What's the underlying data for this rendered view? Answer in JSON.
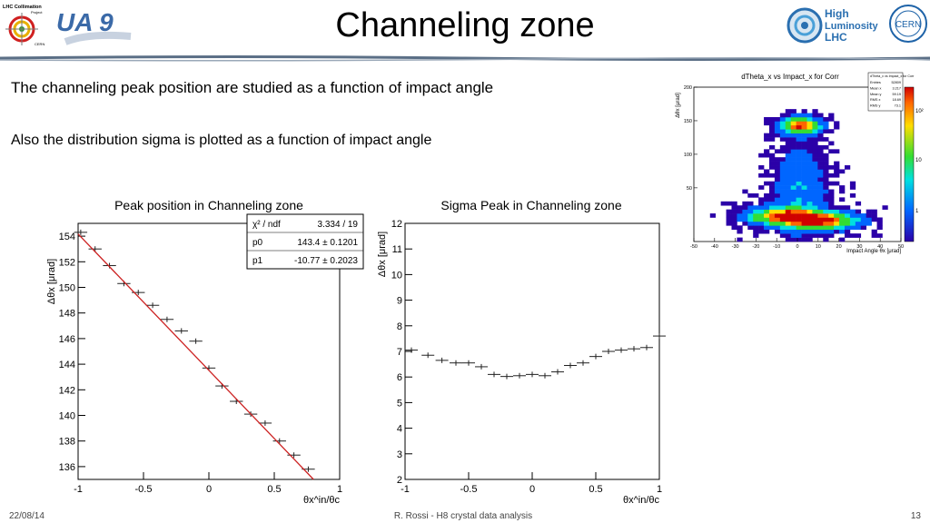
{
  "header": {
    "title": "Channeling zone",
    "logo_left_text": "LHC Collimation",
    "logo_left_sub": "Project",
    "logo_left_sub2": "CERN",
    "logo_ua9_text": "UA 9",
    "logo_hl_line1": "High",
    "logo_hl_line2": "Luminosity",
    "logo_hl_line3": "LHC",
    "logo_cern_text": "CERN"
  },
  "body": {
    "paragraph1": "The channeling peak position are studied as a function of impact angle",
    "paragraph2": "Also the distribution sigma is plotted as a function of impact angle"
  },
  "footer": {
    "date": "22/08/14",
    "center": "R. Rossi - H8 crystal data analysis",
    "page": "13"
  },
  "chart_data": [
    {
      "type": "scatter",
      "title": "Peak position in Channeling zone",
      "xlabel": "θx^in/θc",
      "ylabel": "Δθx [μrad]",
      "xlim": [
        -1,
        1
      ],
      "ylim": [
        135,
        155
      ],
      "xticks": [
        "-1",
        "-0.5",
        "0",
        "0.5",
        "1"
      ],
      "yticks": [
        "136",
        "138",
        "140",
        "142",
        "144",
        "146",
        "148",
        "150",
        "152",
        "154"
      ],
      "x": [
        -0.98,
        -0.87,
        -0.76,
        -0.65,
        -0.54,
        -0.43,
        -0.32,
        -0.21,
        -0.1,
        0.0,
        0.1,
        0.21,
        0.32,
        0.43,
        0.54,
        0.65,
        0.76
      ],
      "y": [
        154.3,
        153.0,
        151.7,
        150.3,
        149.6,
        148.6,
        147.5,
        146.6,
        145.8,
        143.7,
        142.3,
        141.1,
        140.1,
        139.4,
        138.0,
        136.9,
        135.8
      ],
      "xerr": 0.05,
      "fit": {
        "p0": 143.4,
        "p1": -10.77
      },
      "stats": {
        "row1_label": "χ² / ndf",
        "row1_value": "3.334 / 19",
        "row2_label": "p0",
        "row2_value": "143.4 ± 0.1201",
        "row3_label": "p1",
        "row3_value": "-10.77 ± 0.2023"
      },
      "line_color": "#cc2222"
    },
    {
      "type": "scatter",
      "title": "Sigma Peak in Channeling zone",
      "xlabel": "θx^in/θc",
      "ylabel": "Δθx [μrad]",
      "xlim": [
        -1,
        1
      ],
      "ylim": [
        2,
        12
      ],
      "xticks": [
        "-1",
        "-0.5",
        "0",
        "0.5",
        "1"
      ],
      "yticks": [
        "2",
        "3",
        "4",
        "5",
        "6",
        "7",
        "8",
        "9",
        "10",
        "11",
        "12"
      ],
      "x": [
        -0.95,
        -0.82,
        -0.71,
        -0.6,
        -0.5,
        -0.4,
        -0.3,
        -0.2,
        -0.1,
        0.0,
        0.1,
        0.2,
        0.3,
        0.4,
        0.5,
        0.6,
        0.7,
        0.8,
        0.9,
        1.0
      ],
      "y": [
        7.05,
        6.85,
        6.65,
        6.55,
        6.55,
        6.4,
        6.1,
        6.02,
        6.05,
        6.1,
        6.05,
        6.2,
        6.45,
        6.55,
        6.8,
        7.0,
        7.05,
        7.1,
        7.15,
        7.6
      ],
      "xerr": 0.05
    },
    {
      "type": "heatmap",
      "title": "dTheta_x vs Impact_x for Corr",
      "xlabel": "Impact Angle θx [μrad]",
      "ylabel": "Δθx [μrad]",
      "xlim": [
        -50,
        50
      ],
      "ylim": [
        -30,
        200
      ],
      "xticks": [
        "-50",
        "-40",
        "-30",
        "-20",
        "-10",
        "0",
        "10",
        "20",
        "30",
        "40",
        "50"
      ],
      "yticks": [
        "50",
        "100",
        "150",
        "200"
      ],
      "zticks": [
        "1",
        "10",
        "10²"
      ],
      "stats": {
        "header": "dTheta_x vs Impact_x for Corr",
        "rows": [
          {
            "label": "Entries",
            "value": "52809"
          },
          {
            "label": "Mean x",
            "value": "3.217"
          },
          {
            "label": "Mean y",
            "value": "59.19"
          },
          {
            "label": "RMS x",
            "value": "18.69"
          },
          {
            "label": "RMS y",
            "value": "73.1"
          }
        ]
      }
    }
  ]
}
